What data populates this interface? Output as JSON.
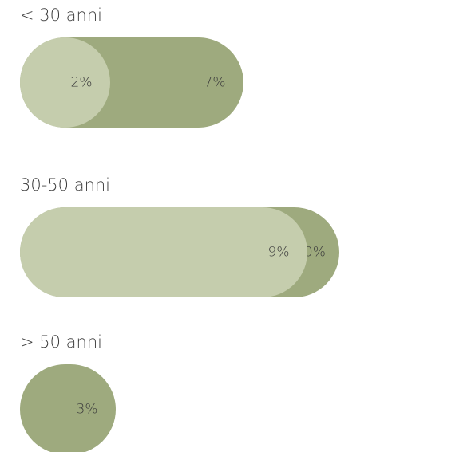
{
  "chart_data": {
    "type": "pill-bar",
    "categories": [
      "< 30 anni",
      "30-50 anni",
      "> 50 anni"
    ],
    "series": [
      {
        "color": "#9eaa7e",
        "values": [
          7,
          10,
          3
        ],
        "value_labels": [
          "7%",
          "10%",
          "3%"
        ]
      },
      {
        "color": "#c5cdad",
        "values": [
          2,
          9,
          null
        ],
        "value_labels": [
          "2%",
          "9%",
          null
        ]
      }
    ]
  }
}
